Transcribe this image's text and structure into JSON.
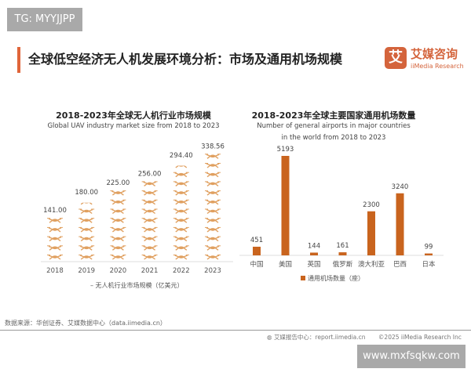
{
  "watermark_top": "TG: MYYJJPP",
  "watermark_bottom": "www.mxfsqkw.com",
  "page_title": "全球低空经济无人机发展环境分析：市场及通用机场规模",
  "logo": {
    "mark": "艾",
    "cn": "艾媒咨询",
    "en": "iiMedia Research"
  },
  "source": "数据来源：华创证券、艾媒数据中心（data.iimedia.cn）",
  "footer": {
    "report": "艾媒报告中心：report.iimedia.cn",
    "copyright": "©2025  iiMedia Research Inc"
  },
  "colors": {
    "accent": "#d4643c",
    "bar": "#c9641e",
    "drone_icon": "#e0a060"
  },
  "chart_data": [
    {
      "type": "bar",
      "style": "pictograph (drone icons)",
      "icon": "drone-icon",
      "title": "2018-2023年全球无人机行业市场规模",
      "subtitle": "Global UAV industry market size from 2018 to 2023",
      "categories": [
        "2018",
        "2019",
        "2020",
        "2021",
        "2022",
        "2023"
      ],
      "values": [
        141.0,
        180.0,
        225.0,
        256.0,
        294.4,
        338.56
      ],
      "labels": [
        "141.00",
        "180.00",
        "225.00",
        "256.00",
        "294.40",
        "338.56"
      ],
      "legend": "无人机行业市场规模（亿美元）",
      "legend_position": "bottom",
      "grid": false
    },
    {
      "type": "bar",
      "title": "2018-2023年全球主要国家通用机场数量",
      "subtitle": [
        "Number of general airports in major countries",
        "in the world from 2018 to 2023"
      ],
      "categories": [
        "中国",
        "美国",
        "英国",
        "俄罗斯",
        "澳大利亚",
        "巴西",
        "日本"
      ],
      "values": [
        451,
        5193,
        144,
        161,
        2300,
        3240,
        99
      ],
      "labels": [
        "451",
        "5193",
        "144",
        "161",
        "2300",
        "3240",
        "99"
      ],
      "legend": "通用机场数量（座）",
      "legend_position": "bottom",
      "grid": false
    }
  ]
}
